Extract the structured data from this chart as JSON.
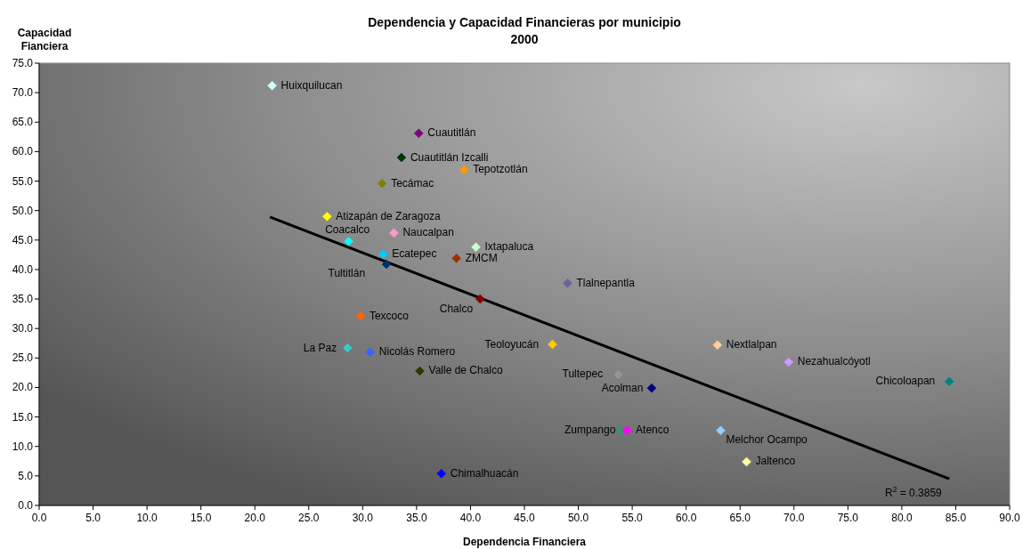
{
  "chart_data": {
    "type": "scatter",
    "title": "Dependencia y Capacidad Financieras por municipio",
    "subtitle": "2000",
    "xlabel": "Dependencia Financiera",
    "ylabel": "Capacidad Fianciera",
    "marker": "diamond",
    "legend": false,
    "grid": false,
    "xlim": [
      0,
      90
    ],
    "ylim": [
      0,
      75
    ],
    "xticks": [
      {
        "value": 0,
        "label": "0.0"
      },
      {
        "value": 5,
        "label": "5.0"
      },
      {
        "value": 10,
        "label": "10.0"
      },
      {
        "value": 15,
        "label": "15.0"
      },
      {
        "value": 20,
        "label": "20.0"
      },
      {
        "value": 25,
        "label": "25.0"
      },
      {
        "value": 30,
        "label": "30.0"
      },
      {
        "value": 35,
        "label": "35.0"
      },
      {
        "value": 40,
        "label": "40.0"
      },
      {
        "value": 45,
        "label": "45.0"
      },
      {
        "value": 50,
        "label": "50.0"
      },
      {
        "value": 55,
        "label": "55.0"
      },
      {
        "value": 60,
        "label": "60.0"
      },
      {
        "value": 65,
        "label": "65.0"
      },
      {
        "value": 70,
        "label": "70.0"
      },
      {
        "value": 75,
        "label": "75.0"
      },
      {
        "value": 80,
        "label": "80.0"
      },
      {
        "value": 85,
        "label": "85.0"
      },
      {
        "value": 90,
        "label": "90.0"
      }
    ],
    "yticks": [
      {
        "value": 0,
        "label": "0.0"
      },
      {
        "value": 5,
        "label": "5.0"
      },
      {
        "value": 10,
        "label": "10.0"
      },
      {
        "value": 15,
        "label": "15.0"
      },
      {
        "value": 20,
        "label": "20.0"
      },
      {
        "value": 25,
        "label": "25.0"
      },
      {
        "value": 30,
        "label": "30.0"
      },
      {
        "value": 35,
        "label": "35.0"
      },
      {
        "value": 40,
        "label": "40.0"
      },
      {
        "value": 45,
        "label": "45.0"
      },
      {
        "value": 50,
        "label": "50.0"
      },
      {
        "value": 55,
        "label": "55.0"
      },
      {
        "value": 60,
        "label": "60.0"
      },
      {
        "value": 65,
        "label": "65.0"
      },
      {
        "value": 70,
        "label": "70.0"
      },
      {
        "value": 75,
        "label": "75.0"
      }
    ],
    "annotations": [
      "R$^{2}$ = 0.3859"
    ],
    "series": [
      {
        "name": "Huixquilucan",
        "color": "#ccffff",
        "x": [
          21.6
        ],
        "values": [
          71.2
        ]
      },
      {
        "name": "Cuautitlán",
        "color": "#800080",
        "x": [
          35.2
        ],
        "values": [
          63.1
        ]
      },
      {
        "name": "Cuautitlán Izcalli",
        "color": "#003300",
        "x": [
          33.6
        ],
        "values": [
          59.0
        ]
      },
      {
        "name": "Tepotzotlán",
        "color": "#ff9900",
        "x": [
          39.4
        ],
        "values": [
          56.9
        ]
      },
      {
        "name": "Tecámac",
        "color": "#808000",
        "x": [
          31.8
        ],
        "values": [
          54.6
        ]
      },
      {
        "name": "Atizapán de Zaragoza",
        "color": "#ffff00",
        "x": [
          26.7
        ],
        "values": [
          49.0
        ]
      },
      {
        "name": "Naucalpan",
        "color": "#ff99cc",
        "x": [
          32.9
        ],
        "values": [
          46.2
        ]
      },
      {
        "name": "Coacalco",
        "color": "#00ffff",
        "x": [
          28.7
        ],
        "values": [
          44.8
        ]
      },
      {
        "name": "Ixtapaluca",
        "color": "#ccffcc",
        "x": [
          40.5
        ],
        "values": [
          43.8
        ]
      },
      {
        "name": "Ecatepec",
        "color": "#00ccff",
        "x": [
          31.9
        ],
        "values": [
          42.6
        ]
      },
      {
        "name": "ZMCM",
        "color": "#993300",
        "x": [
          38.7
        ],
        "values": [
          41.9
        ]
      },
      {
        "name": "Tultitlán",
        "color": "#003366",
        "x": [
          32.2
        ],
        "values": [
          40.9
        ]
      },
      {
        "name": "Tlalnepantla",
        "color": "#666699",
        "x": [
          49.0
        ],
        "values": [
          37.7
        ]
      },
      {
        "name": "Chalco",
        "color": "#800000",
        "x": [
          40.9
        ],
        "values": [
          35.0
        ]
      },
      {
        "name": "Texcoco",
        "color": "#ff6600",
        "x": [
          29.8
        ],
        "values": [
          32.1
        ]
      },
      {
        "name": "La Paz",
        "color": "#33cccc",
        "x": [
          28.6
        ],
        "values": [
          26.7
        ]
      },
      {
        "name": "Nicolás Romero",
        "color": "#3366ff",
        "x": [
          30.7
        ],
        "values": [
          26.0
        ]
      },
      {
        "name": "Teoloyucán",
        "color": "#ffcc00",
        "x": [
          47.6
        ],
        "values": [
          27.3
        ]
      },
      {
        "name": "Nextlalpan",
        "color": "#ffcc99",
        "x": [
          62.9
        ],
        "values": [
          27.2
        ]
      },
      {
        "name": "Nezahualcóyotl",
        "color": "#cc99ff",
        "x": [
          69.5
        ],
        "values": [
          24.3
        ]
      },
      {
        "name": "Valle de Chalco",
        "color": "#333300",
        "x": [
          35.3
        ],
        "values": [
          22.8
        ]
      },
      {
        "name": "Tultepec",
        "color": "#969696",
        "x": [
          53.7
        ],
        "values": [
          22.2
        ]
      },
      {
        "name": "Acolman",
        "color": "#000080",
        "x": [
          56.8
        ],
        "values": [
          19.9
        ]
      },
      {
        "name": "Chicoloapan",
        "color": "#008080",
        "x": [
          84.4
        ],
        "values": [
          21.0
        ]
      },
      {
        "name": "Zumpango",
        "color": "#339966",
        "x": [
          53.9
        ],
        "values": [
          12.7
        ]
      },
      {
        "name": "Atenco",
        "color": "#ff00ff",
        "x": [
          54.5
        ],
        "values": [
          12.7
        ]
      },
      {
        "name": "Melchor Ocampo",
        "color": "#99ccff",
        "x": [
          63.2
        ],
        "values": [
          12.7
        ]
      },
      {
        "name": "Jaltenco",
        "color": "#ffff99",
        "x": [
          65.6
        ],
        "values": [
          7.4
        ]
      },
      {
        "name": "Chimalhuacán",
        "color": "#0000ff",
        "x": [
          37.3
        ],
        "values": [
          5.4
        ]
      },
      {
        "type": "line",
        "color": "#000000",
        "marker": "none",
        "x": [
          21.4,
          84.4
        ],
        "values": [
          48.9,
          4.5
        ]
      }
    ]
  }
}
